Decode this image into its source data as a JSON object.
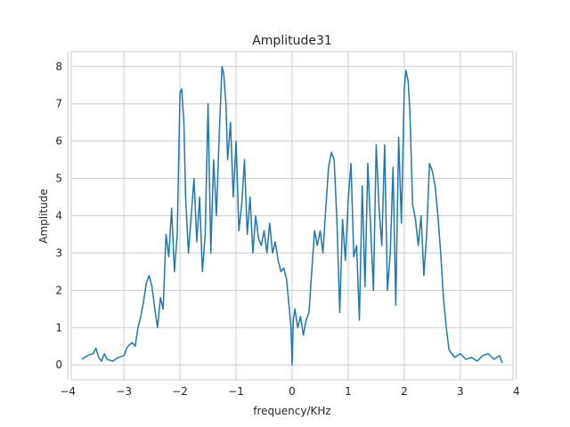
{
  "chart_data": {
    "type": "line",
    "title": "Amplitude31",
    "xlabel": "frequency/KHz",
    "ylabel": "Amplitude",
    "xlim": [
      -3.94,
      3.94
    ],
    "ylim": [
      -0.4,
      8.4
    ],
    "xticks": [
      -4,
      -3,
      -2,
      -1,
      0,
      1,
      2,
      3,
      4
    ],
    "yticks": [
      0,
      1,
      2,
      3,
      4,
      5,
      6,
      7,
      8
    ],
    "grid": true,
    "legend": "none",
    "colors": {
      "line": "#1f77b4",
      "grid": "#cccccc",
      "frame": "#cccccc",
      "background": "#ffffff"
    },
    "series": [
      {
        "x": [
          -3.75,
          -3.65,
          -3.55,
          -3.5,
          -3.45,
          -3.4,
          -3.35,
          -3.3,
          -3.2,
          -3.1,
          -3.0,
          -2.95,
          -2.9,
          -2.85,
          -2.8,
          -2.75,
          -2.7,
          -2.65,
          -2.6,
          -2.55,
          -2.5,
          -2.45,
          -2.4,
          -2.35,
          -2.3,
          -2.25,
          -2.2,
          -2.15,
          -2.1,
          -2.05,
          -2.0,
          -1.97,
          -1.93,
          -1.9,
          -1.85,
          -1.8,
          -1.75,
          -1.7,
          -1.65,
          -1.6,
          -1.55,
          -1.5,
          -1.45,
          -1.4,
          -1.35,
          -1.3,
          -1.25,
          -1.22,
          -1.18,
          -1.15,
          -1.1,
          -1.05,
          -1.0,
          -0.95,
          -0.9,
          -0.85,
          -0.8,
          -0.75,
          -0.7,
          -0.65,
          -0.6,
          -0.55,
          -0.5,
          -0.45,
          -0.4,
          -0.35,
          -0.3,
          -0.25,
          -0.2,
          -0.15,
          -0.1,
          -0.05,
          -0.02,
          0.0,
          0.02,
          0.05,
          0.1,
          0.15,
          0.2,
          0.25,
          0.3,
          0.35,
          0.4,
          0.45,
          0.5,
          0.55,
          0.6,
          0.65,
          0.7,
          0.75,
          0.8,
          0.85,
          0.9,
          0.95,
          1.0,
          1.05,
          1.1,
          1.15,
          1.2,
          1.25,
          1.3,
          1.35,
          1.4,
          1.45,
          1.5,
          1.55,
          1.6,
          1.65,
          1.7,
          1.75,
          1.8,
          1.85,
          1.9,
          1.95,
          2.0,
          2.03,
          2.07,
          2.1,
          2.15,
          2.2,
          2.25,
          2.3,
          2.35,
          2.4,
          2.45,
          2.5,
          2.55,
          2.6,
          2.65,
          2.7,
          2.75,
          2.8,
          2.9,
          3.0,
          3.1,
          3.2,
          3.3,
          3.4,
          3.5,
          3.6,
          3.7,
          3.75
        ],
        "y": [
          0.15,
          0.25,
          0.3,
          0.45,
          0.2,
          0.1,
          0.3,
          0.15,
          0.1,
          0.2,
          0.25,
          0.45,
          0.55,
          0.6,
          0.5,
          1.0,
          1.3,
          1.7,
          2.2,
          2.4,
          2.1,
          1.5,
          1.0,
          1.8,
          1.5,
          3.5,
          2.9,
          4.2,
          2.5,
          3.5,
          7.3,
          7.4,
          6.5,
          4.5,
          3.0,
          4.0,
          5.0,
          3.3,
          4.5,
          2.5,
          3.5,
          7.0,
          3.0,
          5.5,
          4.0,
          6.2,
          8.0,
          7.8,
          7.0,
          5.5,
          6.5,
          4.5,
          6.0,
          3.6,
          4.3,
          5.5,
          3.5,
          4.5,
          3.0,
          4.0,
          3.4,
          3.2,
          3.6,
          3.0,
          3.8,
          3.0,
          3.3,
          2.8,
          2.5,
          2.6,
          2.3,
          1.5,
          1.0,
          0.0,
          1.2,
          1.5,
          1.0,
          1.3,
          0.8,
          1.2,
          1.4,
          2.5,
          3.6,
          3.2,
          3.6,
          3.0,
          4.2,
          5.3,
          5.7,
          5.5,
          3.8,
          1.4,
          3.9,
          2.8,
          4.4,
          5.4,
          2.9,
          3.2,
          1.2,
          4.8,
          2.1,
          5.4,
          3.7,
          2.0,
          5.9,
          4.2,
          3.2,
          5.9,
          2.0,
          3.0,
          5.3,
          1.6,
          6.1,
          3.8,
          7.4,
          7.9,
          7.6,
          6.8,
          4.3,
          3.9,
          3.2,
          4.0,
          2.4,
          3.5,
          5.4,
          5.2,
          4.8,
          4.0,
          3.0,
          1.8,
          1.0,
          0.4,
          0.2,
          0.3,
          0.15,
          0.2,
          0.1,
          0.25,
          0.3,
          0.15,
          0.25,
          0.05
        ]
      }
    ]
  }
}
